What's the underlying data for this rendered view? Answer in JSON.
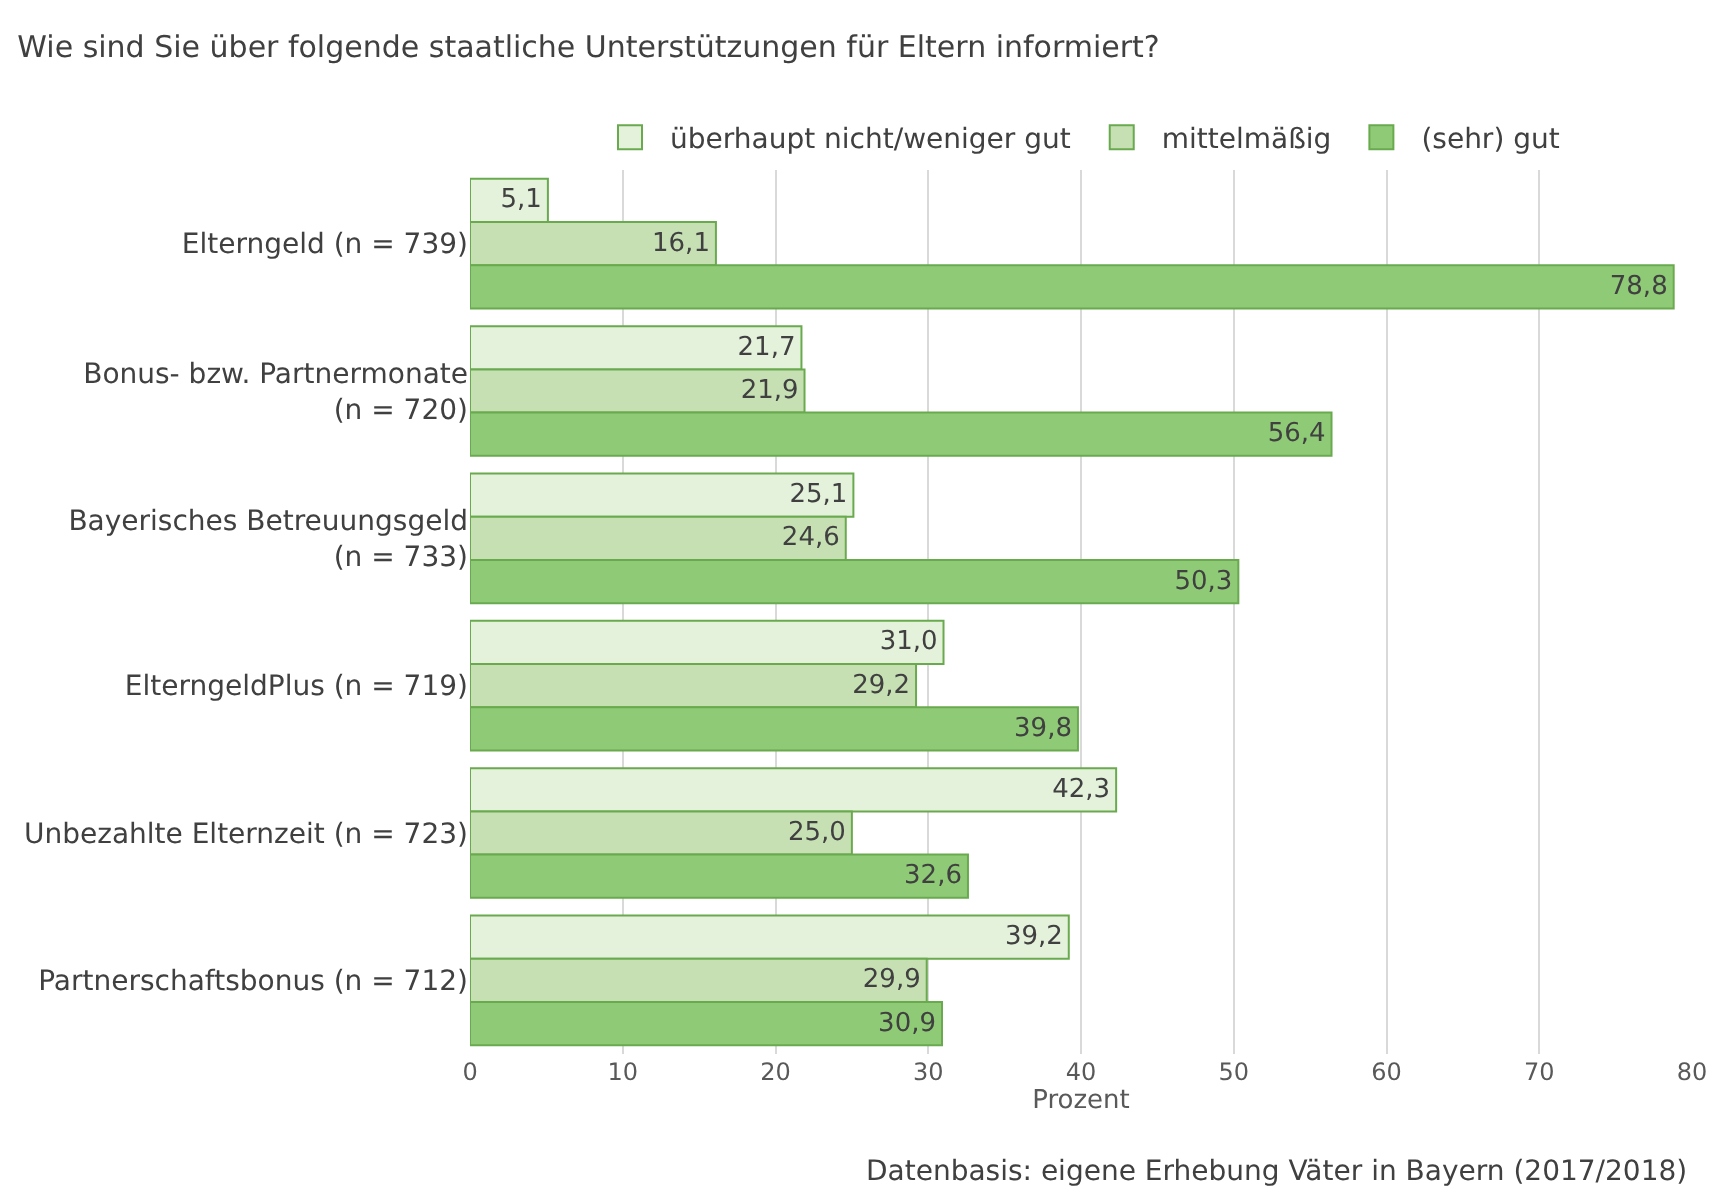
{
  "chart_data": {
    "type": "bar",
    "orientation": "horizontal",
    "title": "Wie sind Sie über folgende staatliche Unterstützungen für Eltern informiert?",
    "categories": [
      "Elterngeld (n = 739)",
      "Bonus- bzw. Partnermonate\n(n = 720)",
      "Bayerisches Betreuungsgeld\n(n = 733)",
      "ElterngeldPlus (n = 719)",
      "Unbezahlte Elternzeit (n = 723)",
      "Partnerschaftsbonus (n = 712)"
    ],
    "series": [
      {
        "name": "überhaupt nicht/weniger gut",
        "color": "#e4f1db",
        "values": [
          5.1,
          21.7,
          25.1,
          31.0,
          42.3,
          39.2
        ],
        "value_labels": [
          "5,1",
          "21,7",
          "25,1",
          "31,0",
          "42,3",
          "39,2"
        ]
      },
      {
        "name": "mittelmäßig",
        "color": "#c6e0b4",
        "values": [
          16.1,
          21.9,
          24.6,
          29.2,
          25.0,
          29.9
        ],
        "value_labels": [
          "16,1",
          "21,9",
          "24,6",
          "29,2",
          "25,0",
          "29,9"
        ]
      },
      {
        "name": "(sehr) gut",
        "color": "#8fcb76",
        "values": [
          78.8,
          56.4,
          50.3,
          39.8,
          32.6,
          30.9
        ],
        "value_labels": [
          "78,8",
          "56,4",
          "50,3",
          "39,8",
          "32,6",
          "30,9"
        ]
      }
    ],
    "xlabel": "Prozent",
    "xlim": [
      0,
      80
    ],
    "xticks": [
      0,
      10,
      20,
      30,
      40,
      50,
      60,
      70,
      80
    ],
    "grid": "x",
    "legend": "top",
    "annotations": [
      "Datenbasis: eigene Erhebung Väter in Bayern (2017/2018)"
    ]
  }
}
